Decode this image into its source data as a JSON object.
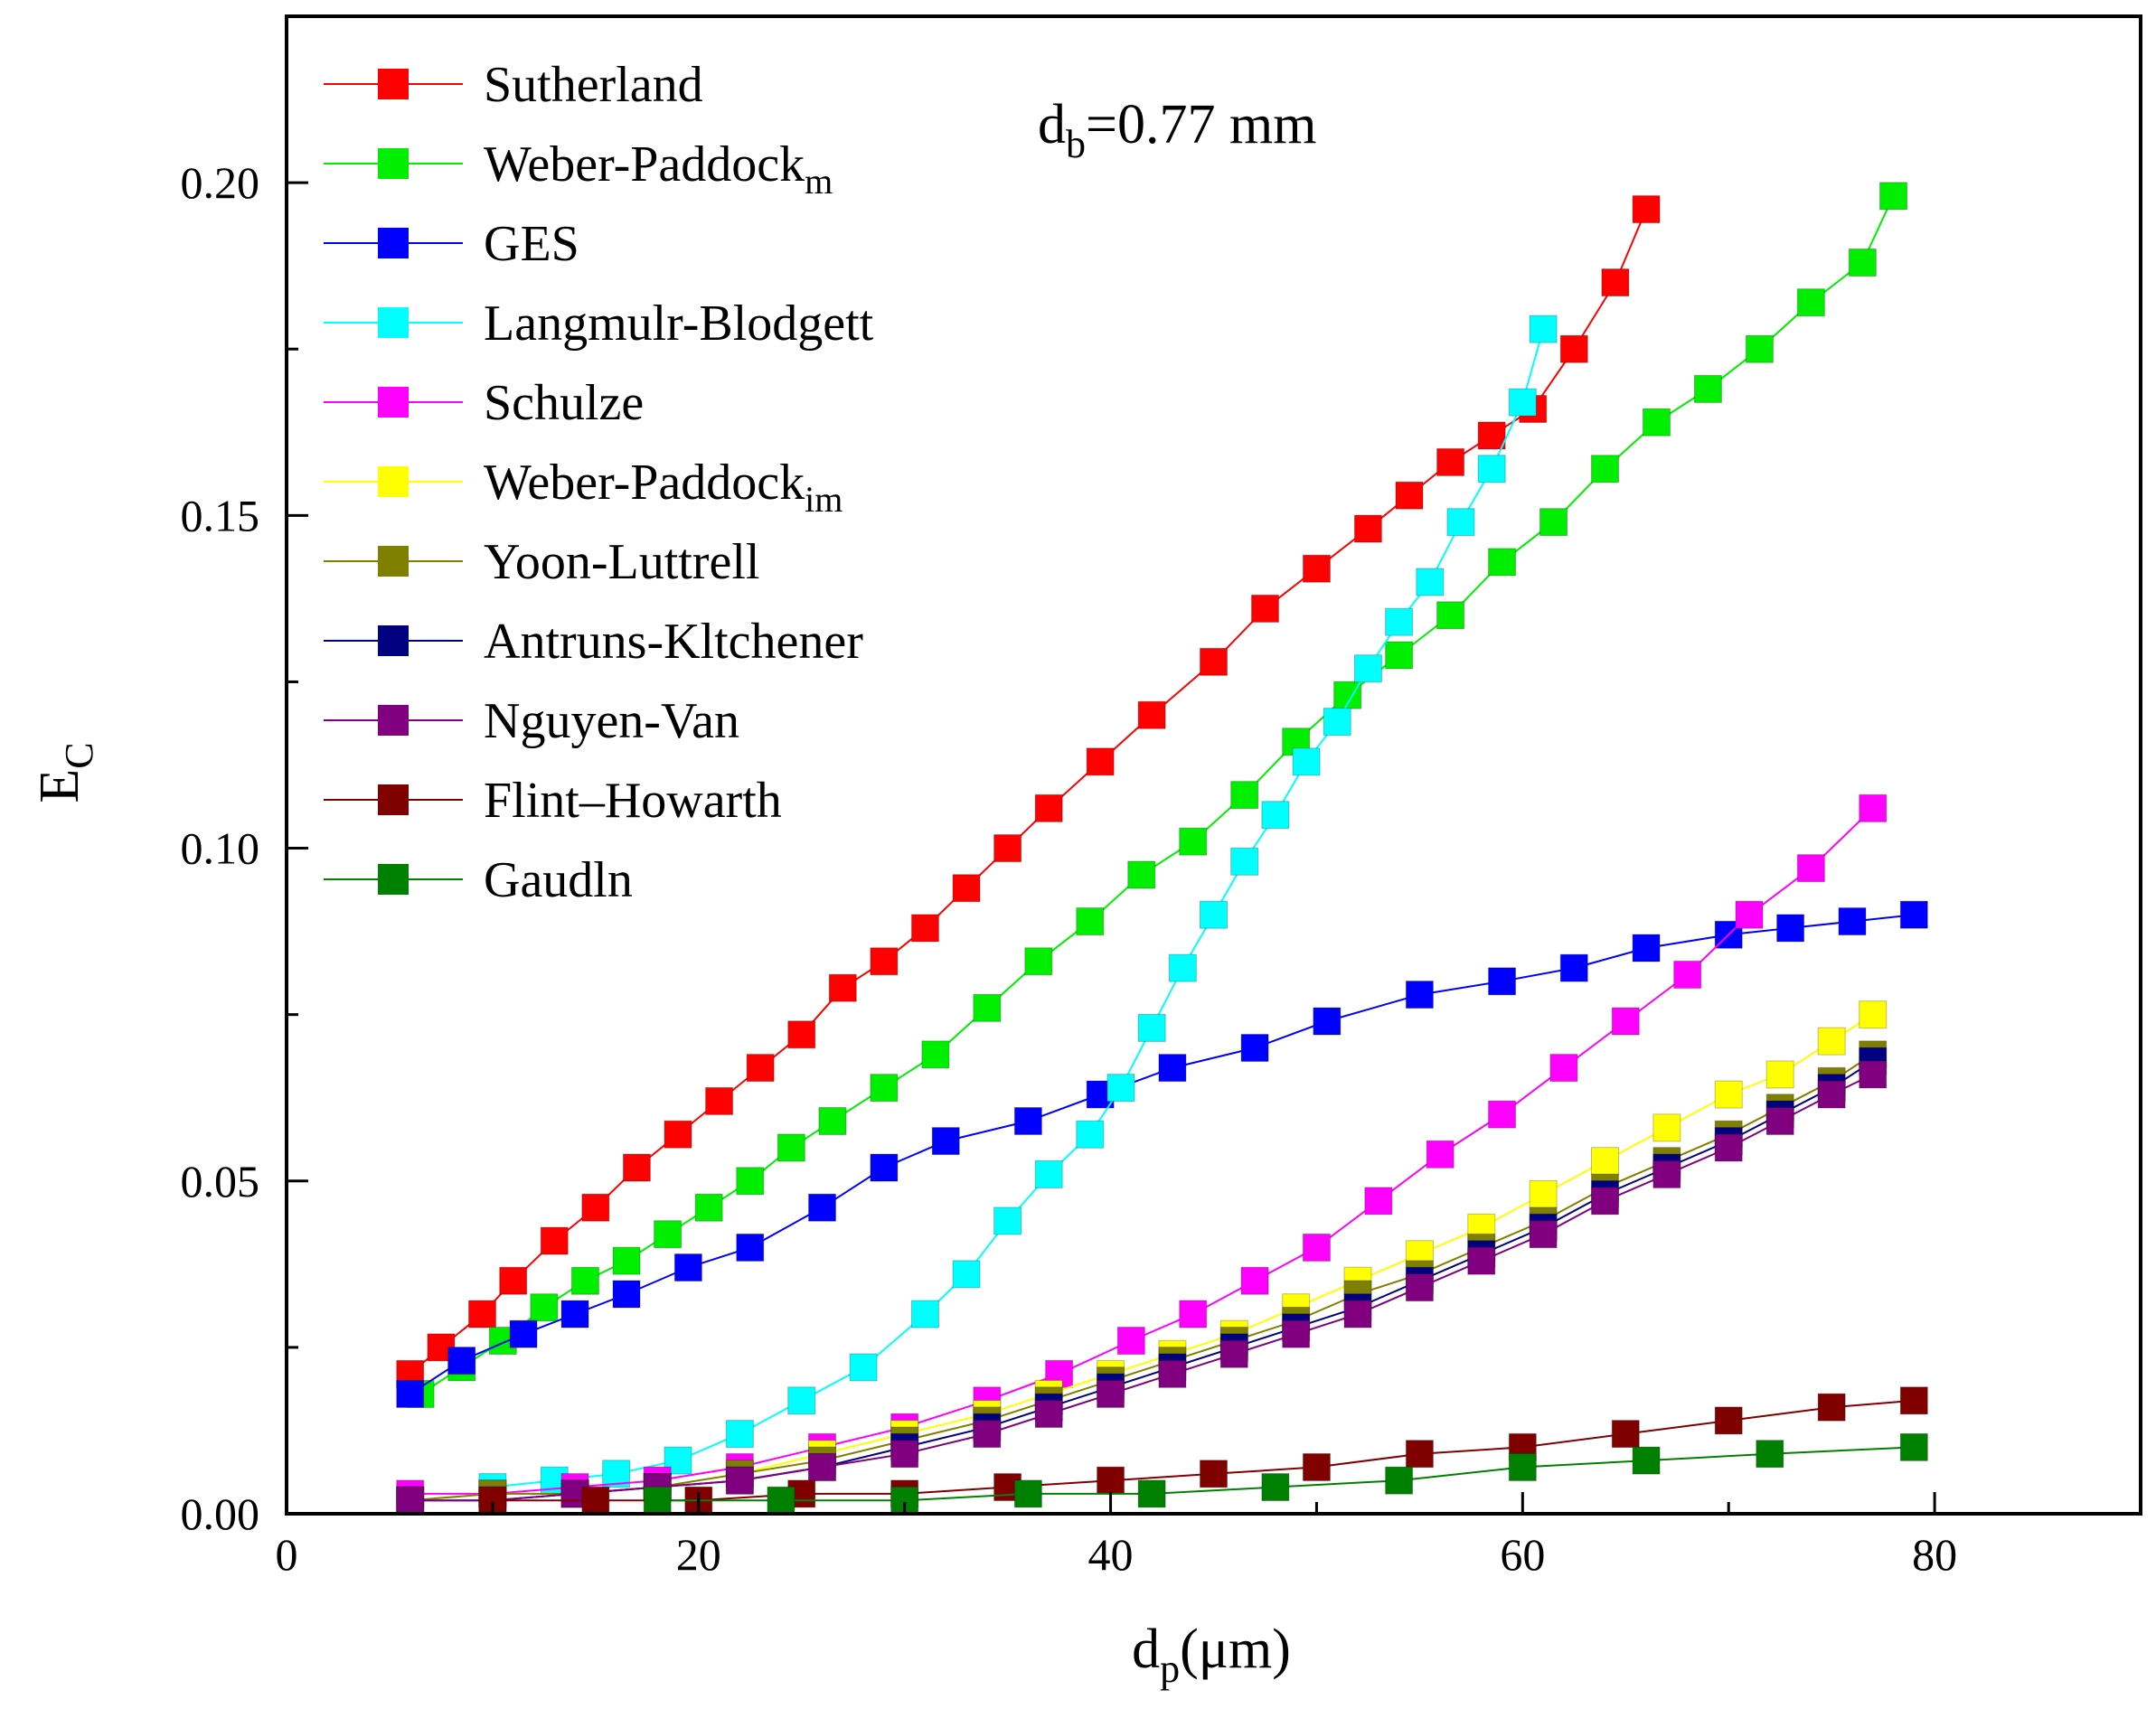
{
  "chart_data": {
    "type": "line",
    "title": "",
    "annotation": {
      "base": "d",
      "sub": "b",
      "rest": "=0.77 mm"
    },
    "xlabel": {
      "base": "d",
      "sub": "p",
      "rest": "(μm)"
    },
    "ylabel": {
      "base": "E",
      "sub": "C"
    },
    "xlim": [
      0,
      90
    ],
    "ylim": [
      0,
      0.225
    ],
    "xticks": [
      0,
      20,
      40,
      60,
      80
    ],
    "xtick_labels": [
      "0",
      "20",
      "40",
      "60",
      "80"
    ],
    "yticks": [
      0.0,
      0.05,
      0.1,
      0.15,
      0.2
    ],
    "ytick_labels": [
      "0.00",
      "0.05",
      "0.10",
      "0.15",
      "0.20"
    ],
    "grid": false,
    "legend_position": "top-left",
    "series": [
      {
        "name": "Sutherland",
        "label_base": "Sutherland",
        "label_sub": "",
        "color": "#ff0000",
        "x": [
          6,
          7.5,
          9.5,
          11,
          13,
          15,
          17,
          19,
          21,
          23,
          25,
          27,
          29,
          31,
          33,
          35,
          37,
          39.5,
          42,
          45,
          47.5,
          50,
          52.5,
          54.5,
          56.5,
          58.5,
          60.5,
          62.5,
          64.5,
          66
        ],
        "y": [
          0.021,
          0.025,
          0.03,
          0.035,
          0.041,
          0.046,
          0.052,
          0.057,
          0.062,
          0.067,
          0.072,
          0.079,
          0.083,
          0.088,
          0.094,
          0.1,
          0.106,
          0.113,
          0.12,
          0.128,
          0.136,
          0.142,
          0.148,
          0.153,
          0.158,
          0.162,
          0.166,
          0.175,
          0.185,
          0.196
        ]
      },
      {
        "name": "Weber-Paddock_m",
        "label_base": "Weber-Paddock",
        "label_sub": "m",
        "color": "#00ee00",
        "x": [
          6.5,
          8.5,
          10.5,
          12.5,
          14.5,
          16.5,
          18.5,
          20.5,
          22.5,
          24.5,
          26.5,
          29,
          31.5,
          34,
          36.5,
          39,
          41.5,
          44,
          46.5,
          49,
          51.5,
          54,
          56.5,
          59,
          61.5,
          64,
          66.5,
          69,
          71.5,
          74,
          76.5,
          78
        ],
        "y": [
          0.018,
          0.022,
          0.026,
          0.031,
          0.035,
          0.038,
          0.042,
          0.046,
          0.05,
          0.055,
          0.059,
          0.064,
          0.069,
          0.076,
          0.083,
          0.089,
          0.096,
          0.101,
          0.108,
          0.116,
          0.123,
          0.129,
          0.135,
          0.143,
          0.149,
          0.157,
          0.164,
          0.169,
          0.175,
          0.182,
          0.188,
          0.198
        ]
      },
      {
        "name": "GES",
        "label_base": "GES",
        "label_sub": "",
        "color": "#0000ff",
        "x": [
          6,
          8.5,
          11.5,
          14,
          16.5,
          19.5,
          22.5,
          26,
          29,
          32,
          36,
          39.5,
          43,
          47,
          50.5,
          55,
          59,
          62.5,
          66,
          70,
          73,
          76,
          79
        ],
        "y": [
          0.018,
          0.023,
          0.027,
          0.03,
          0.033,
          0.037,
          0.04,
          0.046,
          0.052,
          0.056,
          0.059,
          0.063,
          0.067,
          0.07,
          0.074,
          0.078,
          0.08,
          0.082,
          0.085,
          0.087,
          0.088,
          0.089,
          0.09
        ]
      },
      {
        "name": "Langmulr-Blodgett",
        "label_base": "Langmulr-Blodgett",
        "label_sub": "",
        "color": "#00ffff",
        "x": [
          10,
          13,
          16,
          19,
          22,
          25,
          28,
          31,
          33,
          35,
          37,
          39,
          40.5,
          42,
          43.5,
          45,
          46.5,
          48,
          49.5,
          51,
          52.5,
          54,
          55.5,
          57,
          58.5,
          60,
          61
        ],
        "y": [
          0.004,
          0.005,
          0.006,
          0.008,
          0.012,
          0.017,
          0.022,
          0.03,
          0.036,
          0.044,
          0.051,
          0.057,
          0.064,
          0.073,
          0.082,
          0.09,
          0.098,
          0.105,
          0.113,
          0.119,
          0.127,
          0.134,
          0.14,
          0.149,
          0.157,
          0.167,
          0.178
        ]
      },
      {
        "name": "Schulze",
        "label_base": "Schulze",
        "label_sub": "",
        "color": "#ff00ff",
        "x": [
          6,
          10,
          14,
          18,
          22,
          26,
          30,
          34,
          37.5,
          41,
          44,
          47,
          50,
          53,
          56,
          59,
          62,
          65,
          68,
          71,
          74,
          77
        ],
        "y": [
          0.003,
          0.003,
          0.004,
          0.005,
          0.007,
          0.01,
          0.013,
          0.017,
          0.021,
          0.026,
          0.03,
          0.035,
          0.04,
          0.047,
          0.054,
          0.06,
          0.067,
          0.074,
          0.081,
          0.09,
          0.097,
          0.106
        ]
      },
      {
        "name": "Weber-Paddock_im",
        "label_base": "Weber-Paddock",
        "label_sub": "im",
        "color": "#ffff00",
        "x": [
          6,
          10,
          14,
          18,
          22,
          26,
          30,
          34,
          37,
          40,
          43,
          46,
          49,
          52,
          55,
          58,
          61,
          64,
          67,
          70,
          72.5,
          75,
          77
        ],
        "y": [
          0.002,
          0.003,
          0.003,
          0.004,
          0.006,
          0.009,
          0.012,
          0.015,
          0.018,
          0.021,
          0.024,
          0.027,
          0.031,
          0.035,
          0.039,
          0.043,
          0.048,
          0.053,
          0.058,
          0.063,
          0.066,
          0.071,
          0.075
        ]
      },
      {
        "name": "Yoon-Luttrell",
        "label_base": "Yoon-Luttrell",
        "label_sub": "",
        "color": "#808000",
        "x": [
          6,
          10,
          14,
          18,
          22,
          26,
          30,
          34,
          37,
          40,
          43,
          46,
          49,
          52,
          55,
          58,
          61,
          64,
          67,
          70,
          72.5,
          75,
          77
        ],
        "y": [
          0.002,
          0.003,
          0.003,
          0.004,
          0.006,
          0.008,
          0.011,
          0.014,
          0.017,
          0.02,
          0.023,
          0.026,
          0.029,
          0.033,
          0.036,
          0.04,
          0.044,
          0.049,
          0.053,
          0.057,
          0.061,
          0.065,
          0.069
        ]
      },
      {
        "name": "Antruns-Kltchener",
        "label_base": "Antruns-Kltchener",
        "label_sub": "",
        "color": "#000080",
        "x": [
          6,
          10,
          14,
          18,
          22,
          26,
          30,
          34,
          37,
          40,
          43,
          46,
          49,
          52,
          55,
          58,
          61,
          64,
          67,
          70,
          72.5,
          75,
          77
        ],
        "y": [
          0.002,
          0.002,
          0.003,
          0.004,
          0.005,
          0.007,
          0.01,
          0.013,
          0.016,
          0.019,
          0.022,
          0.025,
          0.028,
          0.031,
          0.035,
          0.039,
          0.043,
          0.048,
          0.052,
          0.056,
          0.06,
          0.064,
          0.068
        ]
      },
      {
        "name": "Nguyen-Van",
        "label_base": "Nguyen-Van",
        "label_sub": "",
        "color": "#800080",
        "x": [
          6,
          10,
          14,
          18,
          22,
          26,
          30,
          34,
          37,
          40,
          43,
          46,
          49,
          52,
          55,
          58,
          61,
          64,
          67,
          70,
          72.5,
          75,
          77
        ],
        "y": [
          0.002,
          0.002,
          0.003,
          0.004,
          0.005,
          0.007,
          0.009,
          0.012,
          0.015,
          0.018,
          0.021,
          0.024,
          0.027,
          0.03,
          0.034,
          0.038,
          0.042,
          0.047,
          0.051,
          0.055,
          0.059,
          0.063,
          0.066
        ]
      },
      {
        "name": "Flint–Howarth",
        "label_base": "Flint–Howarth",
        "label_sub": "",
        "color": "#800000",
        "x": [
          10,
          15,
          20,
          25,
          30,
          35,
          40,
          45,
          50,
          55,
          60,
          65,
          70,
          75,
          79
        ],
        "y": [
          0.002,
          0.002,
          0.002,
          0.003,
          0.003,
          0.004,
          0.005,
          0.006,
          0.007,
          0.009,
          0.01,
          0.012,
          0.014,
          0.016,
          0.017
        ]
      },
      {
        "name": "Gaudln",
        "label_base": "Gaudln",
        "label_sub": "",
        "color": "#008000",
        "x": [
          18,
          24,
          30,
          36,
          42,
          48,
          54,
          60,
          66,
          72,
          79
        ],
        "y": [
          0.002,
          0.002,
          0.002,
          0.003,
          0.003,
          0.004,
          0.005,
          0.007,
          0.008,
          0.009,
          0.01
        ]
      }
    ]
  }
}
